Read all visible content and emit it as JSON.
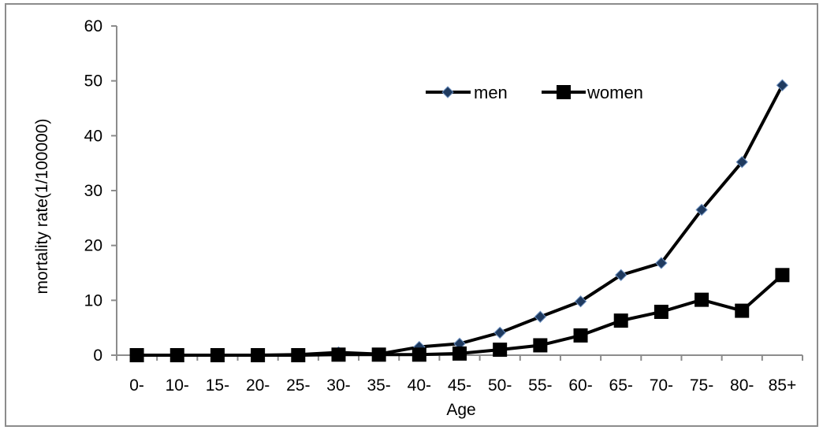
{
  "chart_data": {
    "type": "line",
    "title": "",
    "xlabel": "Age",
    "ylabel": "mortality rate(1/100000)",
    "categories": [
      "0-",
      "10-",
      "15-",
      "20-",
      "25-",
      "30-",
      "35-",
      "40-",
      "45-",
      "50-",
      "55-",
      "60-",
      "65-",
      "70-",
      "75-",
      "80-",
      "85+"
    ],
    "ylim": [
      0,
      60
    ],
    "yticks": [
      0,
      10,
      20,
      30,
      40,
      50,
      60
    ],
    "grid": false,
    "legend_position": "top-right",
    "series": [
      {
        "name": "men",
        "marker": "diamond",
        "line_color": "#000000",
        "marker_color": "#1f3a5f",
        "values": [
          0,
          0,
          0,
          0,
          0.1,
          0.5,
          0.2,
          1.5,
          2.1,
          4.1,
          7.0,
          9.8,
          14.6,
          16.8,
          26.5,
          35.2,
          49.2
        ]
      },
      {
        "name": "women",
        "marker": "square",
        "line_color": "#000000",
        "marker_color": "#000000",
        "values": [
          0,
          0,
          0,
          0,
          0,
          0.1,
          0.1,
          0.1,
          0.3,
          1.0,
          1.8,
          3.6,
          6.3,
          7.9,
          10.1,
          8.1,
          14.6
        ]
      }
    ]
  }
}
